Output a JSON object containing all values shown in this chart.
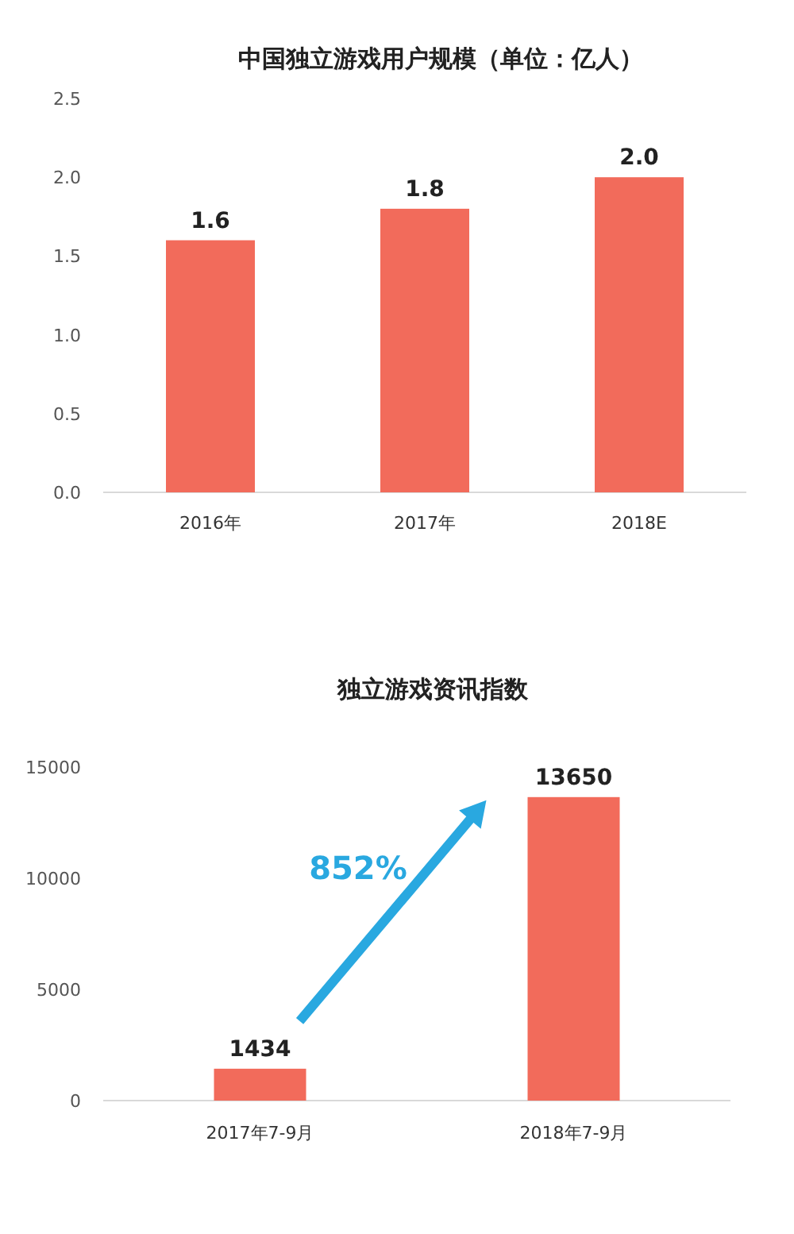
{
  "chart_data": [
    {
      "type": "bar",
      "title": "中国独立游戏用户规模（单位：亿人）",
      "categories": [
        "2016年",
        "2017年",
        "2018E"
      ],
      "values": [
        1.6,
        1.8,
        2.0
      ],
      "color": "#f26b5b",
      "ylim": [
        0,
        2.5
      ],
      "yticks": [
        {
          "value": 0,
          "label": "0.0"
        },
        {
          "value": 0.5,
          "label": "0.5"
        },
        {
          "value": 1,
          "label": "1.0"
        },
        {
          "value": 1.5,
          "label": "1.5"
        },
        {
          "value": 2,
          "label": "2.0"
        },
        {
          "value": 2.5,
          "label": "2.5"
        }
      ],
      "data_labels": true,
      "value_labels": [
        "1.6",
        "1.8",
        "2.0"
      ]
    },
    {
      "type": "bar",
      "title": "独立游戏资讯指数",
      "categories": [
        "2017年7-9月",
        "2018年7-9月"
      ],
      "values": [
        1434,
        13650
      ],
      "color": "#f26b5b",
      "ylim": [
        0,
        15000
      ],
      "yticks": [
        0,
        5000,
        10000,
        15000
      ],
      "data_labels": true,
      "annotations": [
        "852%"
      ]
    }
  ]
}
